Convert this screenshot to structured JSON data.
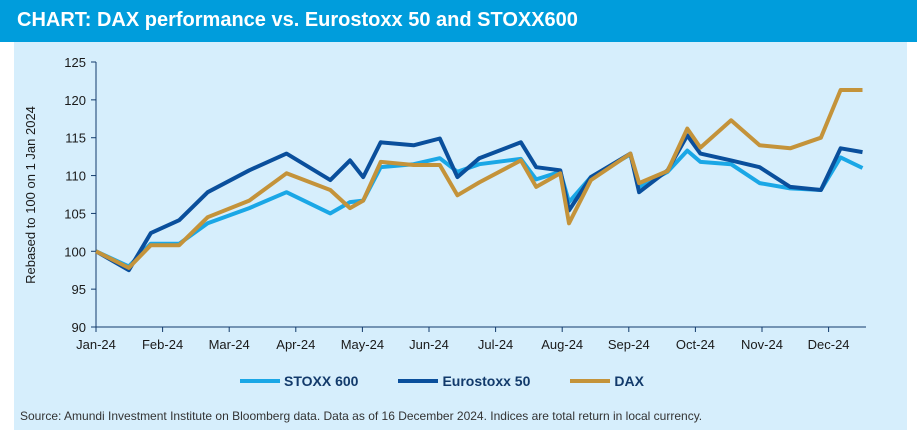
{
  "title": "CHART: DAX performance vs. Eurostoxx 50 and STOXX600",
  "source": "Source: Amundi Investment Institute on Bloomberg data. Data as of 16 December 2024. Indices are total return in local currency.",
  "chart_data": {
    "type": "line",
    "title": "DAX performance vs. Eurostoxx 50 and STOXX600",
    "ylabel": "Rebased to 100 on 1 Jan 2024",
    "xlabel": "",
    "ylim": [
      90,
      125
    ],
    "yticks": [
      90,
      95,
      100,
      105,
      110,
      115,
      120,
      125
    ],
    "xticks": [
      "Jan-24",
      "Feb-24",
      "Mar-24",
      "Apr-24",
      "May-24",
      "Jun-24",
      "Jul-24",
      "Aug-24",
      "Sep-24",
      "Oct-24",
      "Nov-24",
      "Dec-24"
    ],
    "grid": false,
    "legend_position": "bottom",
    "x": [
      "2024-01-01",
      "2024-01-16",
      "2024-01-26",
      "2024-02-08",
      "2024-02-21",
      "2024-03-11",
      "2024-03-28",
      "2024-04-17",
      "2024-04-26",
      "2024-05-02",
      "2024-05-10",
      "2024-05-25",
      "2024-06-06",
      "2024-06-14",
      "2024-06-24",
      "2024-07-13",
      "2024-07-20",
      "2024-07-31",
      "2024-08-04",
      "2024-08-14",
      "2024-09-01",
      "2024-09-05",
      "2024-09-18",
      "2024-09-27",
      "2024-10-03",
      "2024-10-17",
      "2024-10-30",
      "2024-11-13",
      "2024-11-27",
      "2024-12-06",
      "2024-12-16"
    ],
    "series": [
      {
        "name": "STOXX 600",
        "color": "#1aa7e6",
        "values": [
          100,
          98,
          101,
          101,
          103.7,
          105.7,
          107.8,
          105,
          106.5,
          106.7,
          111.1,
          111.5,
          112.3,
          110.5,
          111.5,
          112.2,
          109.5,
          110.5,
          106.5,
          109.8,
          112.8,
          108.5,
          110.5,
          113.3,
          111.8,
          111.5,
          109,
          108.3,
          108.1,
          112.4,
          111
        ]
      },
      {
        "name": "Eurostoxx 50",
        "color": "#0a4f9c",
        "values": [
          100,
          97.5,
          102.4,
          104.1,
          107.8,
          110.7,
          112.9,
          109.4,
          112,
          109.8,
          114.4,
          114,
          114.9,
          109.8,
          112.3,
          114.4,
          111.1,
          110.7,
          105.4,
          109.8,
          112.9,
          107.8,
          110.7,
          115.3,
          112.9,
          112,
          111.1,
          108.5,
          108.1,
          113.6,
          113.1
        ]
      },
      {
        "name": "DAX",
        "color": "#c4933a",
        "values": [
          100,
          97.8,
          100.8,
          100.8,
          104.5,
          106.7,
          110.3,
          108.1,
          105.7,
          106.7,
          111.8,
          111.4,
          111.4,
          107.4,
          109.1,
          112,
          108.5,
          110.3,
          103.7,
          109.4,
          112.9,
          109,
          110.6,
          116.2,
          113.7,
          117.3,
          114,
          113.6,
          115,
          121.3,
          121.3
        ]
      }
    ]
  }
}
